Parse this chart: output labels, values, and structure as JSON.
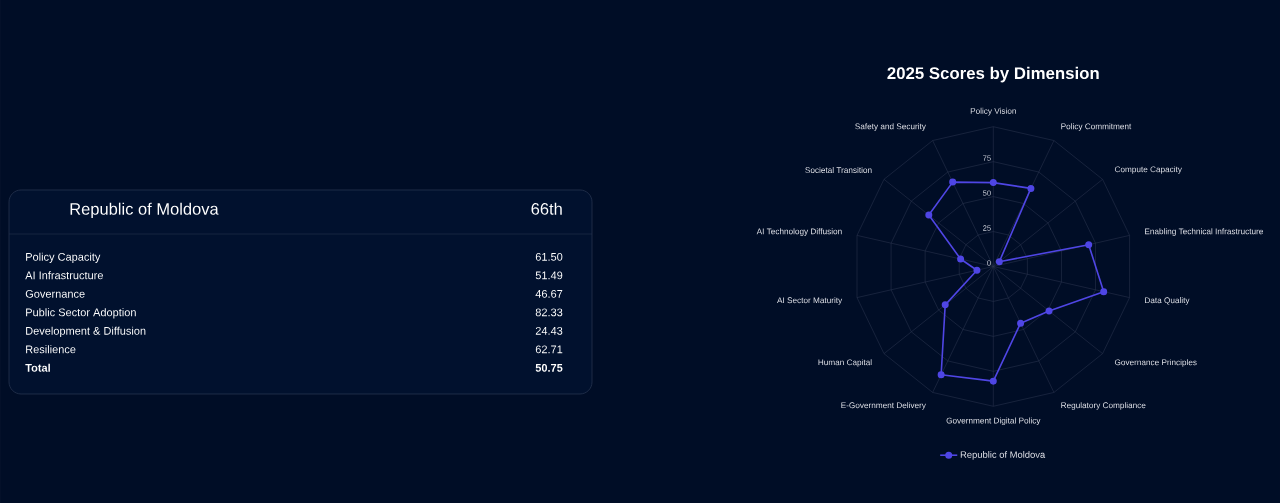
{
  "chart_data": [
    {
      "type": "other",
      "title": "Republic of Moldova",
      "subtitle": "66th",
      "annotations": [
        "Policy Capacity",
        "61.50",
        "AI Infrastructure",
        "51.49",
        "Governance",
        "46.67",
        "Public Sector Adoption",
        "82.33",
        "Development & Diffusion",
        "24.43",
        "Resilience",
        "62.71",
        "Total",
        "50.75"
      ]
    },
    {
      "type": "radar",
      "title": "2025 Scores by Dimension",
      "categories": [
        "Policy Vision",
        "Policy Commitment",
        "Compute Capacity",
        "Enabling Technical Infrastructure",
        "Data Quality",
        "Governance Principles",
        "Regulatory Compliance",
        "Government Digital Policy",
        "E-Government Delivery",
        "Human Capital",
        "AI Sector Maturity",
        "AI Technology Diffusion",
        "Societal Transition",
        "Safety and Security"
      ],
      "series": [
        {
          "name": "Republic of Moldova",
          "color": "#4f46e5",
          "values": [
            60,
            62,
            5.5,
            70,
            81,
            51,
            45,
            82,
            86,
            44,
            12,
            24,
            59,
            67
          ]
        }
      ],
      "ylim": [
        0,
        100
      ],
      "yticks": [
        0,
        25,
        50,
        75
      ],
      "grid": true,
      "legend": "bottom",
      "marker": "circle"
    }
  ]
}
